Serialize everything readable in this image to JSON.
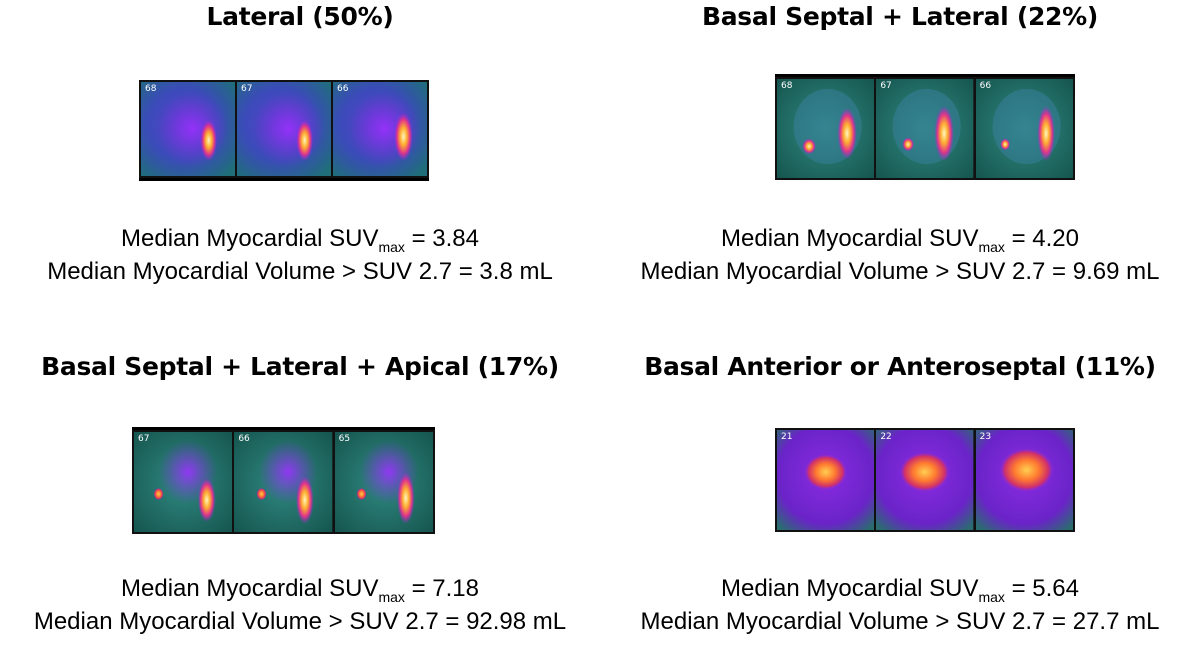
{
  "panels": [
    {
      "title": "Lateral (50%)",
      "frames": [
        "68",
        "67",
        "66"
      ],
      "stat1_prefix": "Median Myocardial SUV",
      "stat1_sub": "max",
      "stat1_value": " = 3.84",
      "stat2": "Median Myocardial Volume > SUV 2.7 = 3.8 mL"
    },
    {
      "title": "Basal Septal + Lateral (22%)",
      "frames": [
        "68",
        "67",
        "66"
      ],
      "stat1_prefix": "Median Myocardial SUV",
      "stat1_sub": "max",
      "stat1_value": " = 4.20",
      "stat2": "Median Myocardial Volume > SUV 2.7 = 9.69 mL"
    },
    {
      "title": "Basal Septal + Lateral + Apical (17%)",
      "frames": [
        "67",
        "66",
        "65"
      ],
      "stat1_prefix": "Median Myocardial SUV",
      "stat1_sub": "max",
      "stat1_value": " = 7.18",
      "stat2": "Median Myocardial Volume > SUV 2.7 = 92.98 mL"
    },
    {
      "title": "Basal Anterior or Anteroseptal (11%)",
      "frames": [
        "21",
        "22",
        "23"
      ],
      "stat1_prefix": "Median Myocardial SUV",
      "stat1_sub": "max",
      "stat1_value": " = 5.64",
      "stat2": "Median Myocardial Volume > SUV 2.7 = 27.7 mL"
    }
  ]
}
